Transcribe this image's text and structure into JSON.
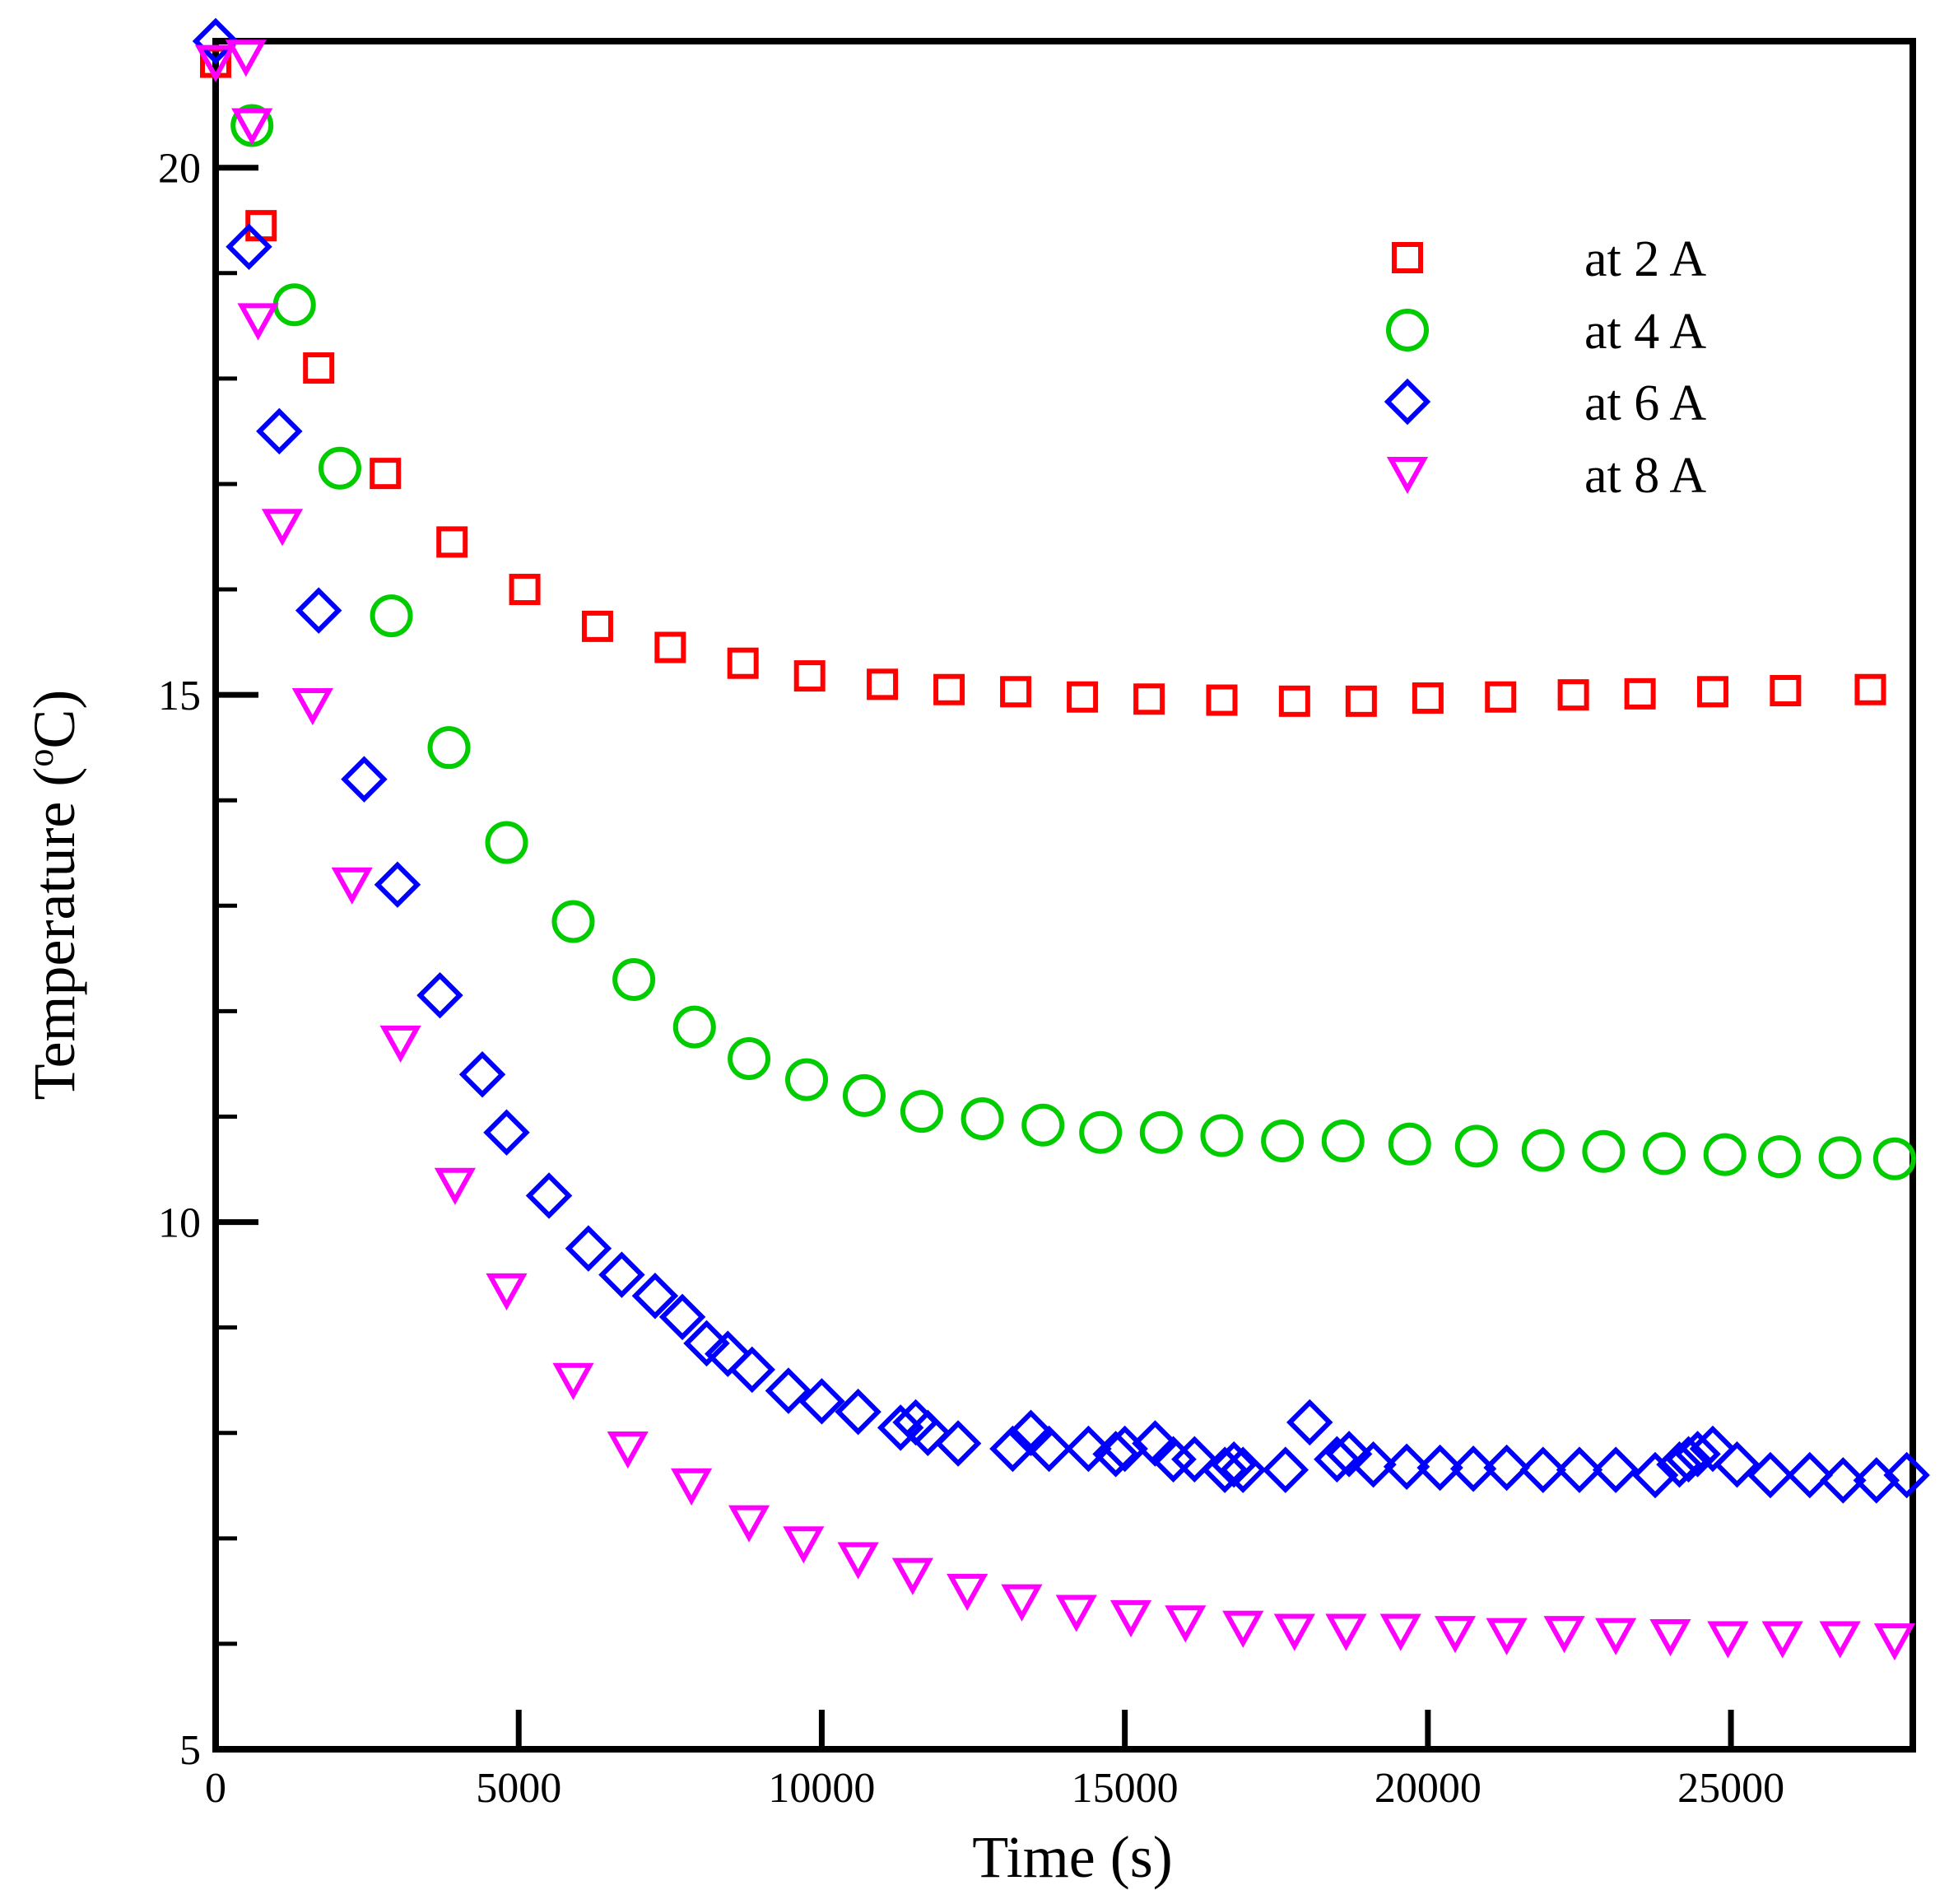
{
  "chart_data": {
    "type": "scatter",
    "title": "",
    "xlabel": "Time (s)",
    "ylabel": "Temperature (",
    "ylabel_degree": "o",
    "ylabel_unit": "C)",
    "xlim": [
      0,
      28000
    ],
    "ylim": [
      5,
      21.2
    ],
    "x_ticks": [
      0,
      5000,
      10000,
      15000,
      20000,
      25000
    ],
    "x_tick_labels": [
      "0",
      "5000",
      "10000",
      "15000",
      "20000",
      "25000"
    ],
    "y_ticks": [
      5,
      10,
      15,
      20
    ],
    "y_tick_labels": [
      "5",
      "10",
      "15",
      "20"
    ],
    "y_minor_ticks": [
      6,
      7,
      8,
      9,
      11,
      12,
      13,
      14,
      16,
      17,
      18,
      19
    ],
    "legend_position": "top-right",
    "series": [
      {
        "name": "at 2 A",
        "marker": "square",
        "color": "#ff0000",
        "x": [
          0,
          750,
          1700,
          2800,
          3900,
          5100,
          6300,
          7500,
          8700,
          9800,
          11000,
          12100,
          13200,
          14300,
          15400,
          16600,
          17800,
          18900,
          20000,
          21200,
          22400,
          23500,
          24700,
          25900,
          27300
        ],
        "y": [
          21.0,
          19.45,
          18.1,
          17.1,
          16.45,
          16.0,
          15.65,
          15.45,
          15.3,
          15.18,
          15.1,
          15.05,
          15.03,
          14.98,
          14.96,
          14.95,
          14.94,
          14.94,
          14.97,
          14.98,
          15.0,
          15.01,
          15.03,
          15.04,
          15.05
        ]
      },
      {
        "name": "at 4 A",
        "marker": "circle",
        "color": "#00cc00",
        "x": [
          600,
          1300,
          2050,
          2900,
          3850,
          4800,
          5900,
          6900,
          7900,
          8800,
          9750,
          10700,
          11650,
          12650,
          13650,
          14600,
          15600,
          16600,
          17600,
          18600,
          19700,
          20800,
          21900,
          22900,
          23900,
          24900,
          25800,
          26800,
          27700
        ],
        "y": [
          20.4,
          18.7,
          17.15,
          15.75,
          14.5,
          13.6,
          12.85,
          12.3,
          11.85,
          11.55,
          11.35,
          11.2,
          11.05,
          10.98,
          10.92,
          10.85,
          10.85,
          10.82,
          10.77,
          10.77,
          10.74,
          10.72,
          10.68,
          10.67,
          10.65,
          10.64,
          10.62,
          10.61,
          10.6
        ]
      },
      {
        "name": "at 6 A",
        "marker": "diamond",
        "color": "#0000ff",
        "x": [
          0,
          550,
          1050,
          1700,
          2450,
          3000,
          3700,
          4400,
          4800,
          5500,
          6150,
          6700,
          7250,
          7700,
          8100,
          8450,
          8850,
          9450,
          10000,
          10600,
          11300,
          11550,
          11750,
          12250,
          13150,
          13450,
          13750,
          14400,
          14850,
          15000,
          15500,
          15800,
          16150,
          16650,
          16800,
          16950,
          17650,
          18050,
          18500,
          18700,
          19100,
          19650,
          20200,
          20750,
          21300,
          21900,
          22500,
          23100,
          23750,
          24150,
          24300,
          24450,
          24700,
          25100,
          25650,
          26300,
          26850,
          27400,
          27900
        ],
        "y": [
          21.2,
          19.25,
          17.5,
          15.8,
          14.2,
          13.2,
          12.15,
          11.4,
          10.85,
          10.25,
          9.75,
          9.5,
          9.3,
          9.1,
          8.85,
          8.75,
          8.6,
          8.4,
          8.3,
          8.2,
          8.05,
          8.1,
          8.0,
          7.9,
          7.85,
          8.0,
          7.85,
          7.85,
          7.8,
          7.85,
          7.9,
          7.75,
          7.75,
          7.65,
          7.7,
          7.65,
          7.65,
          8.1,
          7.75,
          7.8,
          7.7,
          7.68,
          7.67,
          7.66,
          7.67,
          7.65,
          7.65,
          7.65,
          7.6,
          7.7,
          7.75,
          7.8,
          7.85,
          7.7,
          7.6,
          7.6,
          7.55,
          7.55,
          7.6
        ]
      },
      {
        "name": "at 8 A",
        "marker": "triangle-down",
        "color": "#ff00ff",
        "x": [
          0,
          500,
          600,
          700,
          1100,
          1600,
          2250,
          3050,
          3950,
          4800,
          5900,
          6800,
          7850,
          8800,
          9700,
          10600,
          11500,
          12400,
          13300,
          14200,
          15100,
          16000,
          16950,
          17800,
          18650,
          19550,
          20450,
          21300,
          22250,
          23100,
          24000,
          24950,
          25850,
          26800,
          27700
        ],
        "y": [
          21.0,
          21.05,
          20.4,
          18.55,
          16.6,
          14.9,
          13.2,
          11.7,
          10.35,
          9.35,
          8.5,
          7.85,
          7.5,
          7.15,
          6.95,
          6.8,
          6.65,
          6.5,
          6.4,
          6.3,
          6.25,
          6.2,
          6.15,
          6.12,
          6.12,
          6.12,
          6.1,
          6.08,
          6.1,
          6.08,
          6.07,
          6.05,
          6.05,
          6.05,
          6.03
        ]
      }
    ]
  }
}
